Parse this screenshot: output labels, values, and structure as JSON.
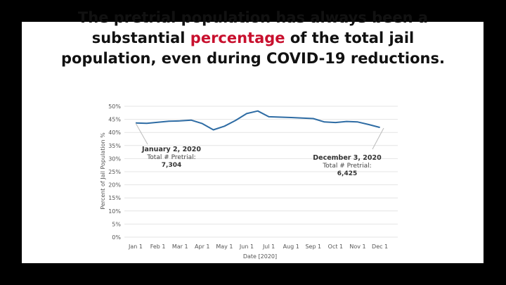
{
  "slide": {
    "title_line1": "The pretrial population has always been a",
    "title_line2_before": "substantial",
    "title_line2_highlight": "percentage",
    "title_line2_after": "of the total jail",
    "title_line3": "population, even during COVID-19 reductions.",
    "highlight_color": "#c8102e"
  },
  "chart_data": {
    "type": "line",
    "title": "",
    "xlabel": "Date [2020]",
    "ylabel": "Percent of Jail Population %",
    "ylim": [
      0,
      50
    ],
    "y_ticks": [
      "0%",
      "5%",
      "10%",
      "15%",
      "20%",
      "25%",
      "30%",
      "35%",
      "40%",
      "45%",
      "50%"
    ],
    "categories": [
      "Jan 1",
      "Feb 1",
      "Mar 1",
      "Apr 1",
      "May 1",
      "Jun 1",
      "Jul 1",
      "Aug 1",
      "Sep 1",
      "Oct 1",
      "Nov 1",
      "Dec 1"
    ],
    "line_color": "#2e6ca4",
    "series": [
      {
        "name": "Pretrial share",
        "points": [
          [
            0,
            43.6
          ],
          [
            0.5,
            43.5
          ],
          [
            1,
            43.9
          ],
          [
            1.5,
            44.3
          ],
          [
            2,
            44.4
          ],
          [
            2.5,
            44.7
          ],
          [
            3,
            43.4
          ],
          [
            3.5,
            41.0
          ],
          [
            4,
            42.4
          ],
          [
            4.5,
            44.6
          ],
          [
            5,
            47.2
          ],
          [
            5.5,
            48.2
          ],
          [
            6,
            46.0
          ],
          [
            7,
            45.7
          ],
          [
            8,
            45.3
          ],
          [
            8.5,
            44.0
          ],
          [
            9,
            43.8
          ],
          [
            9.5,
            44.2
          ],
          [
            10,
            44.0
          ],
          [
            10.5,
            43.0
          ],
          [
            11,
            41.9
          ]
        ]
      }
    ],
    "annotations": [
      {
        "title": "January 2, 2020",
        "line1": "Total # Pretrial:",
        "value": "7,304"
      },
      {
        "title": "December 3, 2020",
        "line1": "Total # Pretrial:",
        "value": "6,425"
      }
    ]
  }
}
